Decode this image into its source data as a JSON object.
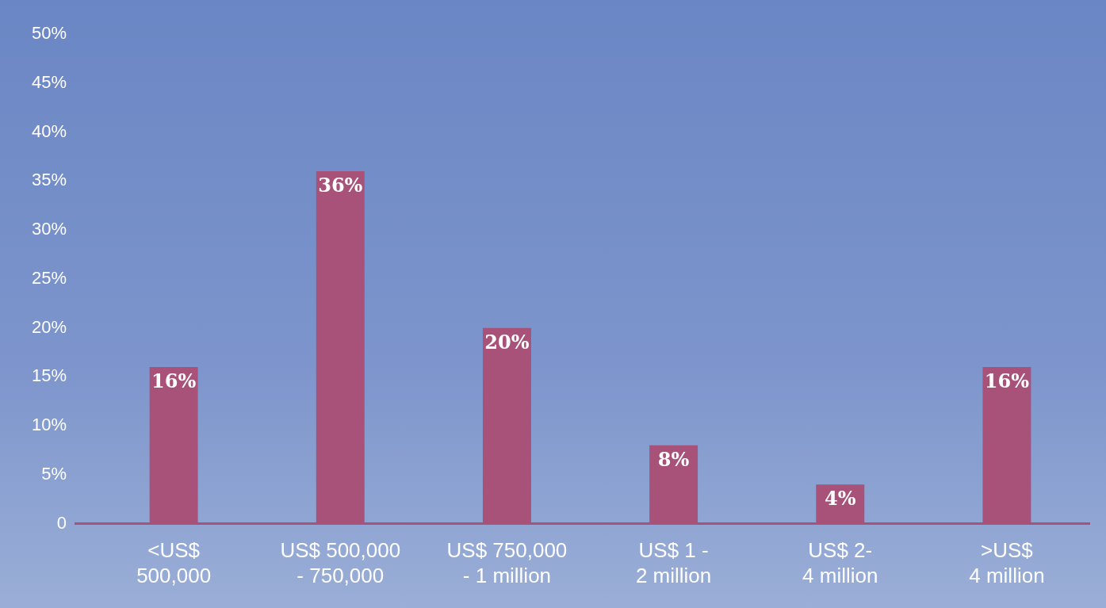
{
  "chart_data": {
    "type": "bar",
    "categories": [
      "<US$\n500,000",
      "US$ 500,000\n- 750,000",
      "US$ 750,000\n- 1 million",
      "US$ 1 -\n2 million",
      "US$ 2-\n4 million",
      ">US$\n4 million"
    ],
    "values": [
      16,
      36,
      20,
      8,
      4,
      16
    ],
    "color": "#a8527a",
    "ylim": [
      0,
      50
    ],
    "yticks": [
      {
        "value": 0,
        "label": "0"
      },
      {
        "value": 5,
        "label": "5%"
      },
      {
        "value": 10,
        "label": "10%"
      },
      {
        "value": 15,
        "label": "15%"
      },
      {
        "value": 20,
        "label": "20%"
      },
      {
        "value": 25,
        "label": "25%"
      },
      {
        "value": 30,
        "label": "30%"
      },
      {
        "value": 35,
        "label": "35%"
      },
      {
        "value": 40,
        "label": "40%"
      },
      {
        "value": 45,
        "label": "45%"
      },
      {
        "value": 50,
        "label": "50%"
      }
    ],
    "value_labels": [
      "16%",
      "36%",
      "20%",
      "8%",
      "4%",
      "16%"
    ],
    "grid": false,
    "legend": false
  }
}
